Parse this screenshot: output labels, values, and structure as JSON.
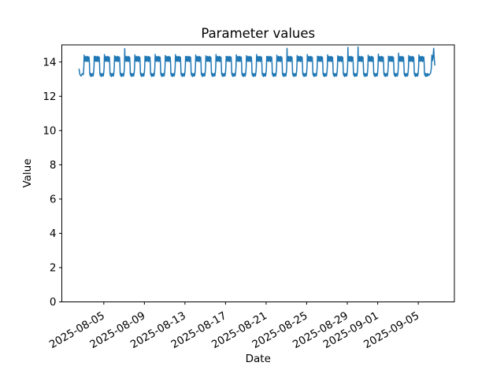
{
  "chart_data": {
    "type": "line",
    "title": "Parameter values",
    "xlabel": "Date",
    "ylabel": "Value",
    "grid": false,
    "legend": null,
    "background_color": "#ffffff",
    "axis_color": "#000000",
    "line_color": "#1f77b4",
    "line_width": 1.5,
    "x_epoch": "2025-08-01",
    "x_unit": "days since 2025-08-01 00:00",
    "xlim": [
      -0.14,
      38.56
    ],
    "ylim": [
      0,
      15.0
    ],
    "yticks": [
      0,
      2,
      4,
      6,
      8,
      10,
      12,
      14
    ],
    "xticks": [
      {
        "label": "2025-08-05",
        "day": 4
      },
      {
        "label": "2025-08-09",
        "day": 8
      },
      {
        "label": "2025-08-13",
        "day": 12
      },
      {
        "label": "2025-08-17",
        "day": 16
      },
      {
        "label": "2025-08-21",
        "day": 20
      },
      {
        "label": "2025-08-25",
        "day": 24
      },
      {
        "label": "2025-08-29",
        "day": 28
      },
      {
        "label": "2025-09-01",
        "day": 31
      },
      {
        "label": "2025-09-05",
        "day": 35
      }
    ],
    "value_min": 13.15,
    "value_max": 14.88,
    "pattern": "daily oscillation between ~13.2 and ~14.4 with occasional tall morning spikes to ~14.8 on Aug 7, Aug 23, Aug 29, Aug 30 and Sep 6",
    "series_encoding": {
      "note": "series = prefix_points + for each day d in full_days: day_template points (t=d+h/24); null value means use day_peaks[d-first_day]; then tail_points",
      "prefix_points": [
        [
          1.56,
          13.58
        ],
        [
          1.64,
          13.28
        ],
        [
          1.76,
          13.18
        ],
        [
          1.88,
          13.32
        ],
        [
          1.98,
          13.26
        ]
      ],
      "full_days": [
        2,
        35
      ],
      "day_template": [
        [
          0.1,
          13.45
        ],
        [
          0.8,
          13.7
        ],
        [
          1.5,
          null
        ],
        [
          2.3,
          14.05
        ],
        [
          3.2,
          14.3
        ],
        [
          4.2,
          14.06
        ],
        [
          5.2,
          14.32
        ],
        [
          6.2,
          14.04
        ],
        [
          7.2,
          14.28
        ],
        [
          8.2,
          14.08
        ],
        [
          9.2,
          14.33
        ],
        [
          10.2,
          14.02
        ],
        [
          11.2,
          14.3
        ],
        [
          12.2,
          14.1
        ],
        [
          13.2,
          14.28
        ],
        [
          14.0,
          13.9
        ],
        [
          14.6,
          13.35
        ],
        [
          15.5,
          13.22
        ],
        [
          16.6,
          13.34
        ],
        [
          17.8,
          13.15
        ],
        [
          19.0,
          13.3
        ],
        [
          20.2,
          13.2
        ],
        [
          21.4,
          13.33
        ],
        [
          22.6,
          13.18
        ],
        [
          23.4,
          13.3
        ]
      ],
      "day_peaks": [
        14.4,
        14.34,
        14.44,
        14.36,
        14.78,
        14.42,
        14.34,
        14.45,
        14.38,
        14.43,
        14.33,
        14.41,
        14.36,
        14.44,
        14.32,
        14.42,
        14.37,
        14.44,
        14.33,
        14.4,
        14.8,
        14.38,
        14.44,
        14.34,
        14.42,
        14.36,
        14.85,
        14.88,
        14.4,
        14.46,
        14.34,
        14.52,
        14.38,
        14.42
      ],
      "tail_points": [
        [
          36.08,
          13.24
        ],
        [
          36.2,
          13.34
        ],
        [
          36.28,
          13.6
        ],
        [
          36.34,
          14.4
        ],
        [
          36.4,
          14.08
        ],
        [
          36.46,
          14.3
        ],
        [
          36.52,
          14.8
        ],
        [
          36.58,
          14.15
        ],
        [
          36.63,
          13.82
        ]
      ]
    }
  }
}
